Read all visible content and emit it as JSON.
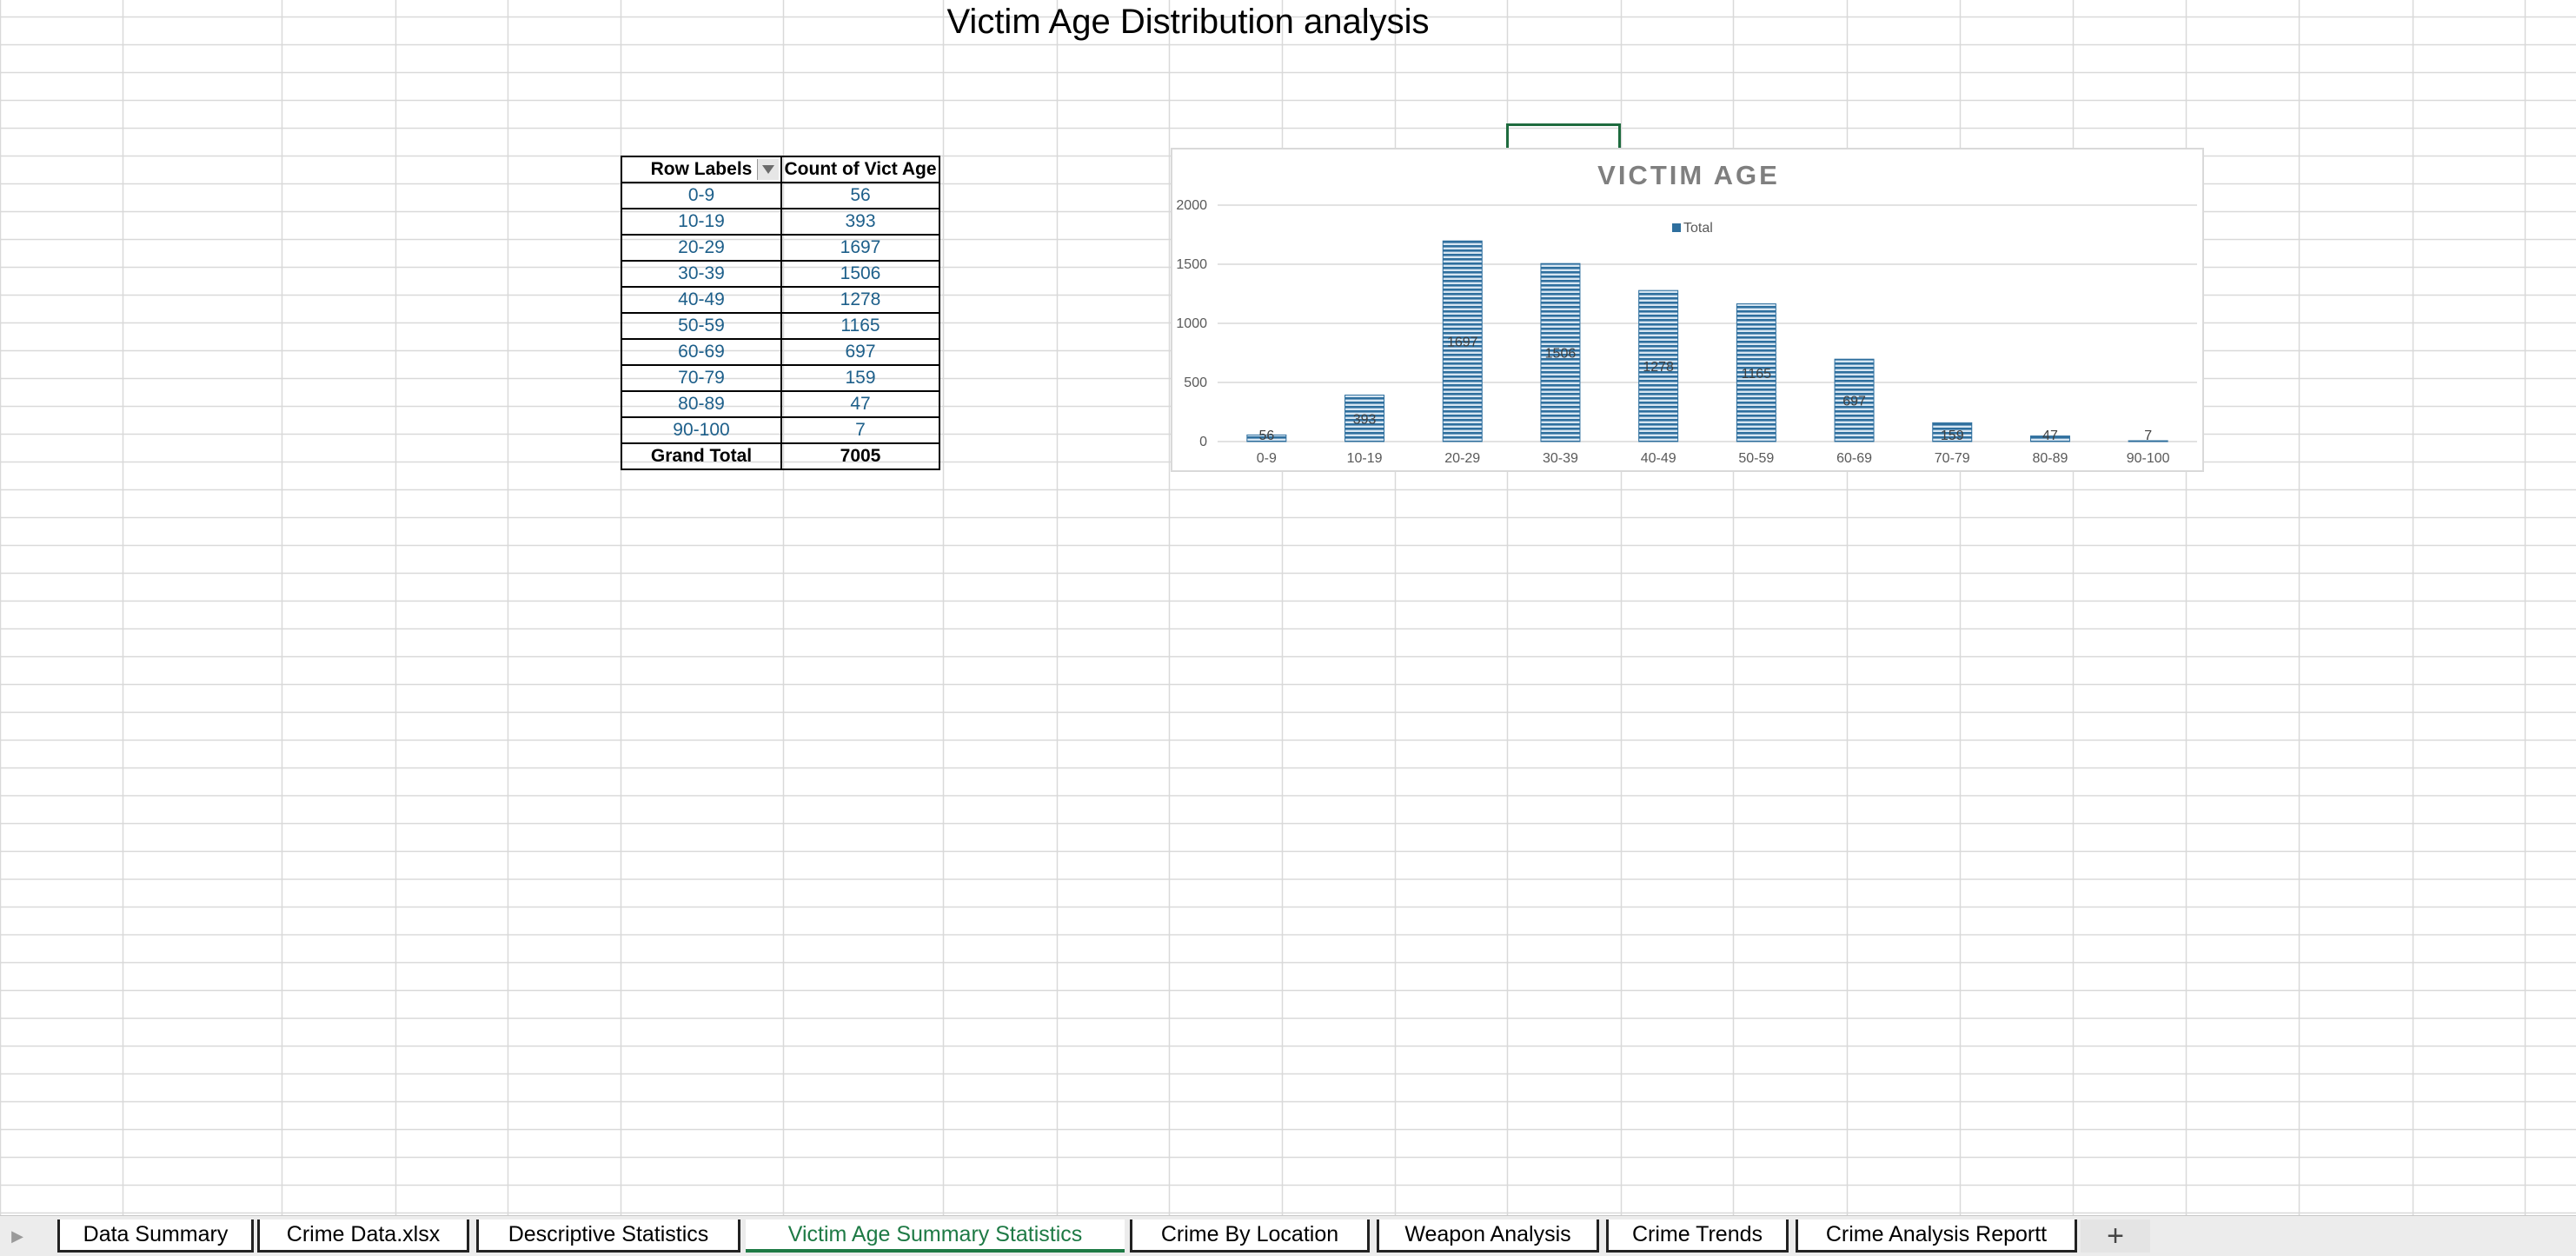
{
  "sheet": {
    "title": "Victim Age Distribution analysis"
  },
  "pivot_table": {
    "headers": [
      "Row Labels",
      "Count of Vict Age"
    ],
    "rows": [
      {
        "label": "0-9",
        "count": "56"
      },
      {
        "label": "10-19",
        "count": "393"
      },
      {
        "label": "20-29",
        "count": "1697"
      },
      {
        "label": "30-39",
        "count": "1506"
      },
      {
        "label": "40-49",
        "count": "1278"
      },
      {
        "label": "50-59",
        "count": "1165"
      },
      {
        "label": "60-69",
        "count": "697"
      },
      {
        "label": "70-79",
        "count": "159"
      },
      {
        "label": "80-89",
        "count": "47"
      },
      {
        "label": "90-100",
        "count": "7"
      }
    ],
    "total_label": "Grand Total",
    "total_value": "7005",
    "filter_icon": "dropdown-filter-icon"
  },
  "chart_data": {
    "type": "bar",
    "title": "VICTIM AGE",
    "categories": [
      "0-9",
      "10-19",
      "20-29",
      "30-39",
      "40-49",
      "50-59",
      "60-69",
      "70-79",
      "80-89",
      "90-100"
    ],
    "series": [
      {
        "name": "Total",
        "values": [
          56,
          393,
          1697,
          1506,
          1278,
          1165,
          697,
          159,
          47,
          7
        ],
        "color": "#2e6f9e"
      }
    ],
    "y_ticks": [
      0,
      500,
      1000,
      1500,
      2000
    ],
    "ylim": [
      0,
      2000
    ],
    "legend": "top-center",
    "grid": true,
    "data_labels": true
  },
  "tabs": {
    "items": [
      {
        "label": "Data Summary",
        "active": false
      },
      {
        "label": "Crime Data.xlsx",
        "active": false
      },
      {
        "label": "Descriptive Statistics",
        "active": false
      },
      {
        "label": "Victim Age Summary Statistics",
        "active": true
      },
      {
        "label": "Crime By Location",
        "active": false
      },
      {
        "label": "Weapon Analysis",
        "active": false
      },
      {
        "label": "Crime Trends",
        "active": false
      },
      {
        "label": "Crime Analysis Reportt",
        "active": false
      }
    ],
    "add_icon": "plus-icon",
    "nav_icon": "play-right-icon"
  },
  "colors": {
    "accent": "#1e7a45",
    "gridline": "#d9d9d9",
    "value_text": "#1d5f8a"
  }
}
